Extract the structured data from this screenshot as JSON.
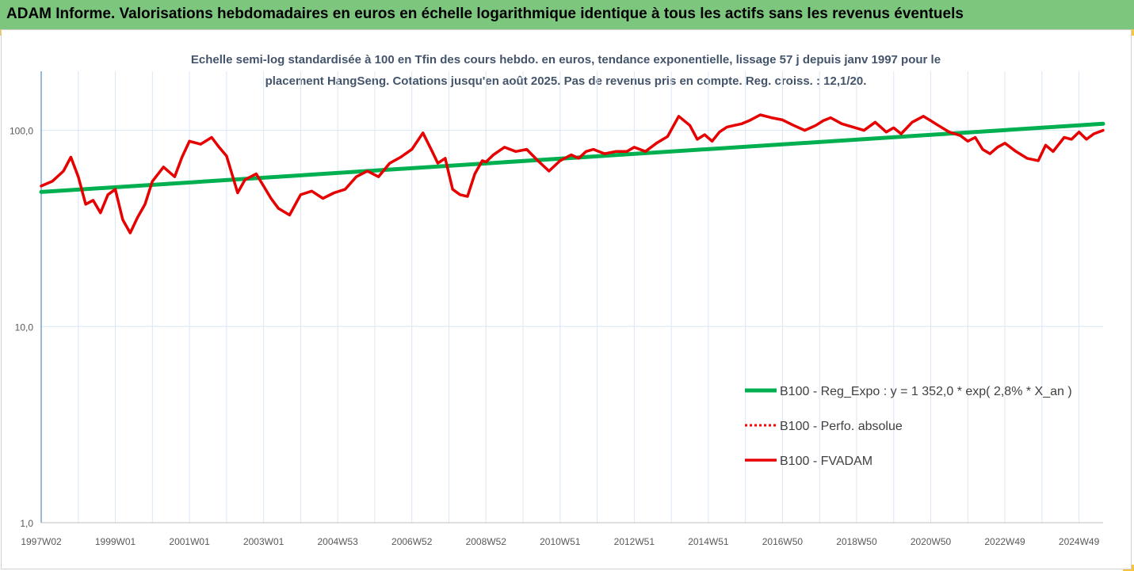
{
  "header": {
    "title": "ADAM Informe. Valorisations hebdomadaires en euros en échelle logarithmique identique à tous les actifs sans les revenus éventuels"
  },
  "colors": {
    "header_bg": "#7dc67e",
    "corner_accent": "#f6c343",
    "trend": "#00b050",
    "fvadam": "#e60000",
    "perfo": "#ff0000",
    "grid": "#d9e7f5"
  },
  "chart_data": {
    "type": "line",
    "subtitle_line1": "Echelle semi-log standardisée à 100 en Tfin des cours hebdo. en euros, tendance exponentielle, lissage 57 j depuis janv 1997 pour le",
    "subtitle_line2": "placement HangSeng.  Cotations jusqu'en août 2025.  Pas de revenus pris en compte. Reg. croiss. : 12,1/20.",
    "y_scale": "log",
    "ylim": [
      1,
      200
    ],
    "y_ticks": [
      {
        "value": 100,
        "label": "100,0"
      },
      {
        "value": 10,
        "label": "10,0"
      },
      {
        "value": 1,
        "label": "1,0"
      }
    ],
    "xlim": [
      1997.0,
      2025.65
    ],
    "x_ticks": [
      {
        "value": 1997.0,
        "label": "1997W02"
      },
      {
        "value": 1999.0,
        "label": "1999W01"
      },
      {
        "value": 2001.0,
        "label": "2001W01"
      },
      {
        "value": 2003.0,
        "label": "2003W01"
      },
      {
        "value": 2005.0,
        "label": "2004W53"
      },
      {
        "value": 2007.0,
        "label": "2006W52"
      },
      {
        "value": 2009.0,
        "label": "2008W52"
      },
      {
        "value": 2011.0,
        "label": "2010W51"
      },
      {
        "value": 2013.0,
        "label": "2012W51"
      },
      {
        "value": 2015.0,
        "label": "2014W51"
      },
      {
        "value": 2017.0,
        "label": "2016W50"
      },
      {
        "value": 2019.0,
        "label": "2018W50"
      },
      {
        "value": 2021.0,
        "label": "2020W50"
      },
      {
        "value": 2023.0,
        "label": "2022W49"
      },
      {
        "value": 2025.0,
        "label": "2024W49"
      }
    ],
    "grid": true,
    "legend_position": "right",
    "series": [
      {
        "name": "B100 - Reg_Expo : y = 1 352,0 * exp( 2,8% *  X_an )",
        "style": "solid-thick",
        "color": "#00b050",
        "x": [
          1997.0,
          2025.65
        ],
        "y": [
          48.5,
          108.0
        ]
      },
      {
        "name": "B100 - Perfo. absolue",
        "style": "dotted",
        "color": "#ff0000",
        "x": [],
        "y": []
      },
      {
        "name": "B100 - FVADAM",
        "style": "solid",
        "color": "#e60000",
        "x": [
          1997.0,
          1997.3,
          1997.6,
          1997.8,
          1998.0,
          1998.2,
          1998.4,
          1998.6,
          1998.8,
          1999.0,
          1999.2,
          1999.4,
          1999.6,
          1999.8,
          2000.0,
          2000.3,
          2000.6,
          2000.8,
          2001.0,
          2001.3,
          2001.6,
          2001.8,
          2002.0,
          2002.3,
          2002.5,
          2002.8,
          2003.0,
          2003.2,
          2003.4,
          2003.7,
          2004.0,
          2004.3,
          2004.6,
          2004.9,
          2005.2,
          2005.5,
          2005.8,
          2006.1,
          2006.4,
          2006.7,
          2007.0,
          2007.3,
          2007.55,
          2007.7,
          2007.9,
          2008.1,
          2008.3,
          2008.5,
          2008.7,
          2008.9,
          2009.0,
          2009.2,
          2009.5,
          2009.8,
          2010.1,
          2010.4,
          2010.7,
          2011.0,
          2011.3,
          2011.5,
          2011.7,
          2011.9,
          2012.2,
          2012.5,
          2012.8,
          2013.0,
          2013.3,
          2013.6,
          2013.9,
          2014.2,
          2014.5,
          2014.7,
          2014.9,
          2015.1,
          2015.3,
          2015.5,
          2015.7,
          2015.9,
          2016.1,
          2016.4,
          2016.7,
          2017.0,
          2017.3,
          2017.6,
          2017.9,
          2018.1,
          2018.3,
          2018.6,
          2018.9,
          2019.2,
          2019.5,
          2019.8,
          2020.0,
          2020.2,
          2020.5,
          2020.8,
          2021.0,
          2021.2,
          2021.5,
          2021.8,
          2022.0,
          2022.2,
          2022.4,
          2022.6,
          2022.8,
          2023.0,
          2023.3,
          2023.6,
          2023.9,
          2024.1,
          2024.3,
          2024.6,
          2024.8,
          2025.0,
          2025.2,
          2025.4,
          2025.65
        ],
        "y": [
          52,
          55,
          62,
          73,
          58,
          42,
          44,
          38,
          47,
          50,
          35,
          30,
          36,
          42,
          55,
          65,
          58,
          73,
          88,
          85,
          92,
          82,
          74,
          48,
          56,
          60,
          52,
          45,
          40,
          37,
          47,
          49,
          45,
          48,
          50,
          58,
          62,
          58,
          68,
          73,
          80,
          97,
          78,
          68,
          72,
          50,
          47,
          46,
          60,
          70,
          69,
          75,
          82,
          78,
          80,
          70,
          62,
          70,
          75,
          72,
          78,
          80,
          76,
          78,
          78,
          82,
          78,
          86,
          93,
          118,
          106,
          90,
          95,
          88,
          98,
          104,
          106,
          108,
          112,
          120,
          116,
          113,
          106,
          100,
          106,
          112,
          116,
          108,
          104,
          100,
          110,
          98,
          103,
          96,
          110,
          118,
          112,
          106,
          98,
          94,
          88,
          92,
          80,
          76,
          82,
          86,
          78,
          72,
          70,
          84,
          78,
          92,
          90,
          98,
          90,
          96,
          100
        ]
      }
    ]
  }
}
